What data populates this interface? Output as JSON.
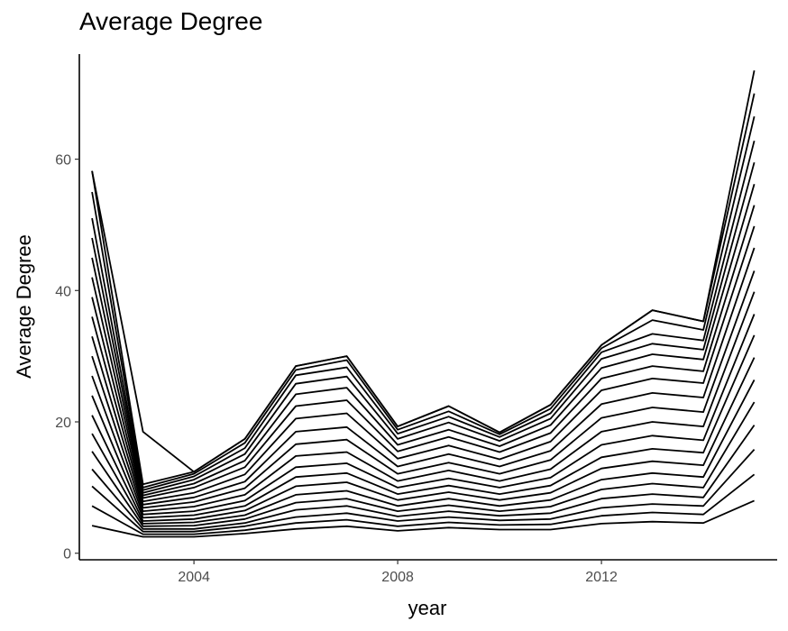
{
  "chart_data": {
    "type": "line",
    "title": "Average Degree",
    "xlabel": "year",
    "ylabel": "Average Degree",
    "x": [
      2002,
      2003,
      2004,
      2005,
      2006,
      2007,
      2008,
      2009,
      2010,
      2011,
      2012,
      2013,
      2014,
      2015
    ],
    "xlim": [
      2001.75,
      2015.45
    ],
    "ylim": [
      -1,
      76
    ],
    "xticks": [
      2004,
      2008,
      2012
    ],
    "xtick_labels": [
      "2004",
      "2008",
      "2012"
    ],
    "yticks": [
      0,
      20,
      40,
      60
    ],
    "ytick_labels": [
      "0",
      "20",
      "40",
      "60"
    ],
    "grid": false,
    "legend": "none",
    "line_color": "#000000",
    "series": [
      {
        "values": [
          4.2,
          2.5,
          2.5,
          3.0,
          3.7,
          4.1,
          3.4,
          3.9,
          3.6,
          3.6,
          4.5,
          4.8,
          4.6,
          8.0
        ]
      },
      {
        "values": [
          7.2,
          2.9,
          2.9,
          3.5,
          4.6,
          5.1,
          4.1,
          4.7,
          4.3,
          4.4,
          5.7,
          6.2,
          5.9,
          12.0
        ]
      },
      {
        "values": [
          10.2,
          3.3,
          3.3,
          4.1,
          5.5,
          6.1,
          4.9,
          5.5,
          5.0,
          5.2,
          6.9,
          7.5,
          7.2,
          15.8
        ]
      },
      {
        "values": [
          12.8,
          3.7,
          3.7,
          4.6,
          6.6,
          7.2,
          5.6,
          6.4,
          5.7,
          6.1,
          8.3,
          9.0,
          8.5,
          19.5
        ]
      },
      {
        "values": [
          15.5,
          4.1,
          4.2,
          5.2,
          7.7,
          8.3,
          6.4,
          7.3,
          6.4,
          7.1,
          9.7,
          10.6,
          10.0,
          23.0
        ]
      },
      {
        "values": [
          18.2,
          4.5,
          4.7,
          5.8,
          8.9,
          9.5,
          7.2,
          8.3,
          7.2,
          8.1,
          11.2,
          12.2,
          11.6,
          26.4
        ]
      },
      {
        "values": [
          21.0,
          4.9,
          5.2,
          6.5,
          10.2,
          10.8,
          8.1,
          9.3,
          8.1,
          9.2,
          12.9,
          14.0,
          13.4,
          29.8
        ]
      },
      {
        "values": [
          24.0,
          5.4,
          5.8,
          7.2,
          11.6,
          12.2,
          9.0,
          10.3,
          9.0,
          10.3,
          14.6,
          15.9,
          15.3,
          33.2
        ]
      },
      {
        "values": [
          27.0,
          5.9,
          6.4,
          8.0,
          13.1,
          13.7,
          10.0,
          11.4,
          10.0,
          11.5,
          16.5,
          17.9,
          17.2,
          36.4
        ]
      },
      {
        "values": [
          30.0,
          6.4,
          7.1,
          8.9,
          14.8,
          15.4,
          11.0,
          12.6,
          11.0,
          12.8,
          18.5,
          20.0,
          19.3,
          39.8
        ]
      },
      {
        "values": [
          33.0,
          6.9,
          7.8,
          9.9,
          16.6,
          17.3,
          12.1,
          13.8,
          12.1,
          14.2,
          20.6,
          22.2,
          21.5,
          43.0
        ]
      },
      {
        "values": [
          36.0,
          7.4,
          8.5,
          10.9,
          18.5,
          19.2,
          13.2,
          15.1,
          13.2,
          15.6,
          22.7,
          24.4,
          23.7,
          46.5
        ]
      },
      {
        "values": [
          39.0,
          7.9,
          9.2,
          12.0,
          20.5,
          21.3,
          14.4,
          16.4,
          14.3,
          17.0,
          24.8,
          26.6,
          25.9,
          49.8
        ]
      },
      {
        "values": [
          42.0,
          8.4,
          10.0,
          13.1,
          22.4,
          23.3,
          15.5,
          17.7,
          15.4,
          18.3,
          26.6,
          28.5,
          27.7,
          53.0
        ]
      },
      {
        "values": [
          45.0,
          8.8,
          10.6,
          14.1,
          24.2,
          25.2,
          16.5,
          18.8,
          16.3,
          19.5,
          28.2,
          30.3,
          29.5,
          56.2
        ]
      },
      {
        "values": [
          48.0,
          9.2,
          11.2,
          15.1,
          25.8,
          26.9,
          17.4,
          19.9,
          17.1,
          20.5,
          29.6,
          31.9,
          31.0,
          59.5
        ]
      },
      {
        "values": [
          51.0,
          9.6,
          11.7,
          16.0,
          27.1,
          28.3,
          18.2,
          20.8,
          17.7,
          21.3,
          30.6,
          33.4,
          32.4,
          62.8
        ]
      },
      {
        "values": [
          55.0,
          10.0,
          12.1,
          16.8,
          27.9,
          29.4,
          18.8,
          21.6,
          18.1,
          22.0,
          31.2,
          35.5,
          34.0,
          66.5
        ]
      },
      {
        "values": [
          58.2,
          10.5,
          12.4,
          17.4,
          28.5,
          30.0,
          19.3,
          22.4,
          18.4,
          22.6,
          31.7,
          37.0,
          35.3,
          70.0
        ]
      },
      {
        "values": [
          58.2,
          18.5,
          12.4,
          17.4,
          28.5,
          30.0,
          19.3,
          22.4,
          18.4,
          22.6,
          31.7,
          37.0,
          35.3,
          73.5
        ]
      }
    ]
  }
}
